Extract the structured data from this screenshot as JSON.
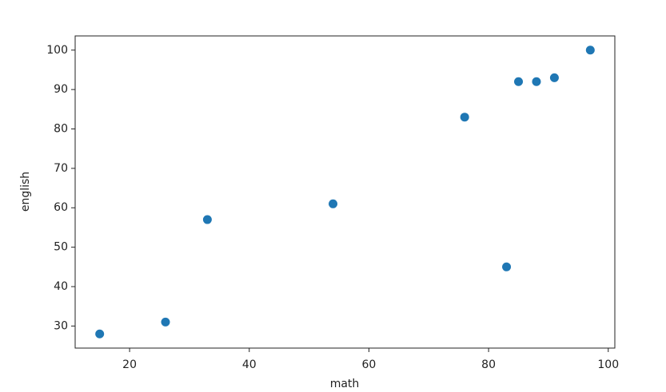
{
  "chart_data": {
    "type": "scatter",
    "xlabel": "math",
    "ylabel": "english",
    "x": [
      15,
      26,
      33,
      54,
      76,
      83,
      85,
      88,
      91,
      97
    ],
    "series": [
      {
        "color": "#1f77b4",
        "values": [
          28,
          31,
          57,
          61,
          83,
          45,
          92,
          92,
          93,
          100
        ]
      }
    ],
    "xlim": [
      10.9,
      101.1
    ],
    "ylim": [
      24.4,
      103.6
    ],
    "xticks": [
      20,
      40,
      60,
      80,
      100
    ],
    "yticks": [
      30,
      40,
      50,
      60,
      70,
      80,
      90,
      100
    ],
    "grid": false
  }
}
